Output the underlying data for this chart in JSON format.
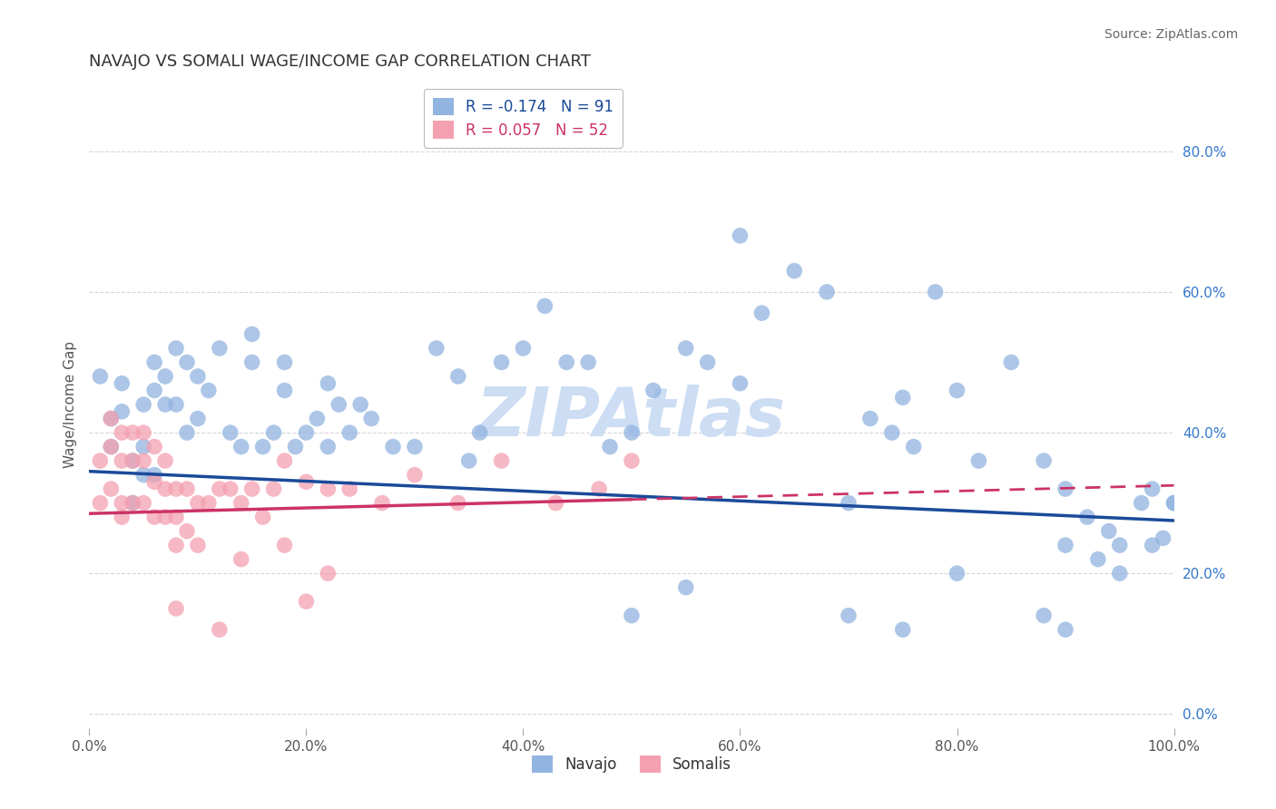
{
  "title": "NAVAJO VS SOMALI WAGE/INCOME GAP CORRELATION CHART",
  "source": "Source: ZipAtlas.com",
  "ylabel": "Wage/Income Gap",
  "xlim": [
    0.0,
    1.0
  ],
  "ylim": [
    -0.02,
    0.9
  ],
  "yticks": [
    0.0,
    0.2,
    0.4,
    0.6,
    0.8
  ],
  "xticks": [
    0.0,
    0.2,
    0.4,
    0.6,
    0.8,
    1.0
  ],
  "navajo_R": -0.174,
  "navajo_N": 91,
  "somali_R": 0.057,
  "somali_N": 52,
  "navajo_color": "#92b4e0",
  "somali_color": "#f4a0b0",
  "navajo_line_color": "#1a4a9a",
  "somali_line_color": "#cc3366",
  "background_color": "#ffffff",
  "grid_color": "#cccccc",
  "watermark": "ZIPAtlas",
  "watermark_color": "#ccddf4",
  "legend_navajo_label": "R = -0.174   N = 91",
  "legend_somali_label": "R = 0.057   N = 52",
  "navajo_line_x0": 0.0,
  "navajo_line_y0": 0.345,
  "navajo_line_x1": 1.0,
  "navajo_line_y1": 0.275,
  "somali_line_solid_x0": 0.0,
  "somali_line_solid_y0": 0.285,
  "somali_line_solid_x1": 0.5,
  "somali_line_solid_y1": 0.305,
  "somali_line_dash_x0": 0.5,
  "somali_line_dash_y0": 0.305,
  "somali_line_dash_x1": 1.0,
  "somali_line_dash_y1": 0.325,
  "navajo_x": [
    0.01,
    0.02,
    0.02,
    0.03,
    0.03,
    0.04,
    0.04,
    0.05,
    0.05,
    0.05,
    0.06,
    0.06,
    0.06,
    0.07,
    0.07,
    0.08,
    0.08,
    0.09,
    0.09,
    0.1,
    0.1,
    0.11,
    0.12,
    0.13,
    0.14,
    0.15,
    0.16,
    0.17,
    0.18,
    0.19,
    0.2,
    0.21,
    0.22,
    0.23,
    0.24,
    0.25,
    0.26,
    0.28,
    0.3,
    0.32,
    0.34,
    0.36,
    0.38,
    0.4,
    0.42,
    0.44,
    0.46,
    0.48,
    0.5,
    0.52,
    0.55,
    0.57,
    0.6,
    0.62,
    0.65,
    0.68,
    0.7,
    0.72,
    0.74,
    0.76,
    0.78,
    0.8,
    0.82,
    0.85,
    0.88,
    0.9,
    0.92,
    0.94,
    0.95,
    0.97,
    0.98,
    1.0,
    0.15,
    0.18,
    0.22,
    0.35,
    0.5,
    0.55,
    0.7,
    0.75,
    0.8,
    0.88,
    0.9,
    0.93,
    0.95,
    0.98,
    0.99,
    1.0,
    0.6,
    0.75,
    0.9
  ],
  "navajo_y": [
    0.48,
    0.42,
    0.38,
    0.47,
    0.43,
    0.36,
    0.3,
    0.44,
    0.38,
    0.34,
    0.5,
    0.46,
    0.34,
    0.48,
    0.44,
    0.52,
    0.44,
    0.4,
    0.5,
    0.42,
    0.48,
    0.46,
    0.52,
    0.4,
    0.38,
    0.5,
    0.38,
    0.4,
    0.46,
    0.38,
    0.4,
    0.42,
    0.38,
    0.44,
    0.4,
    0.44,
    0.42,
    0.38,
    0.38,
    0.52,
    0.48,
    0.4,
    0.5,
    0.52,
    0.58,
    0.5,
    0.5,
    0.38,
    0.4,
    0.46,
    0.52,
    0.5,
    0.68,
    0.57,
    0.63,
    0.6,
    0.3,
    0.42,
    0.4,
    0.38,
    0.6,
    0.46,
    0.36,
    0.5,
    0.36,
    0.32,
    0.28,
    0.26,
    0.24,
    0.3,
    0.32,
    0.3,
    0.54,
    0.5,
    0.47,
    0.36,
    0.14,
    0.18,
    0.14,
    0.12,
    0.2,
    0.14,
    0.24,
    0.22,
    0.2,
    0.24,
    0.25,
    0.3,
    0.47,
    0.45,
    0.12
  ],
  "somali_x": [
    0.01,
    0.01,
    0.02,
    0.02,
    0.02,
    0.03,
    0.03,
    0.03,
    0.03,
    0.04,
    0.04,
    0.04,
    0.05,
    0.05,
    0.05,
    0.06,
    0.06,
    0.06,
    0.07,
    0.07,
    0.07,
    0.08,
    0.08,
    0.08,
    0.09,
    0.09,
    0.1,
    0.1,
    0.11,
    0.12,
    0.13,
    0.14,
    0.15,
    0.16,
    0.17,
    0.18,
    0.2,
    0.22,
    0.24,
    0.27,
    0.3,
    0.34,
    0.38,
    0.43,
    0.47,
    0.5,
    0.14,
    0.18,
    0.2,
    0.22,
    0.08,
    0.12
  ],
  "somali_y": [
    0.3,
    0.36,
    0.42,
    0.38,
    0.32,
    0.4,
    0.36,
    0.3,
    0.28,
    0.4,
    0.36,
    0.3,
    0.4,
    0.36,
    0.3,
    0.38,
    0.33,
    0.28,
    0.36,
    0.32,
    0.28,
    0.32,
    0.28,
    0.24,
    0.32,
    0.26,
    0.3,
    0.24,
    0.3,
    0.32,
    0.32,
    0.3,
    0.32,
    0.28,
    0.32,
    0.36,
    0.33,
    0.32,
    0.32,
    0.3,
    0.34,
    0.3,
    0.36,
    0.3,
    0.32,
    0.36,
    0.22,
    0.24,
    0.16,
    0.2,
    0.15,
    0.12
  ]
}
